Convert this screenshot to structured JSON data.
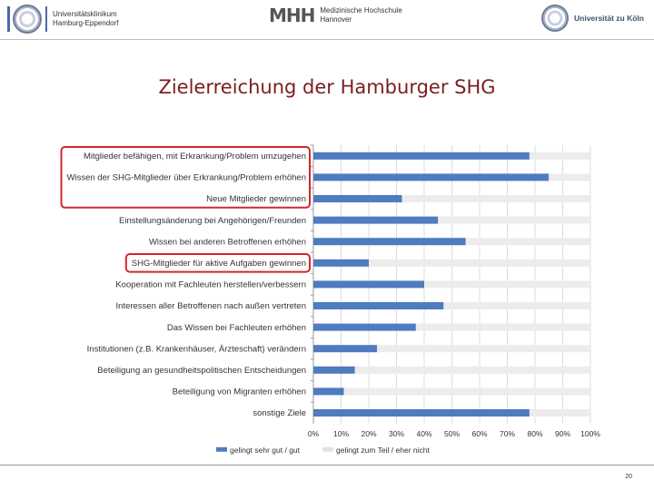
{
  "logos": {
    "uke": {
      "line1": "Universitätsklinikum",
      "line2": "Hamburg-Eppendorf"
    },
    "mhh": {
      "mark": "MHH",
      "line1": "Medizinische Hochschule",
      "line2": "Hannover"
    },
    "uzk": {
      "name": "Universität zu Köln"
    }
  },
  "slide": {
    "title": "Zielerreichung der Hamburger SHG",
    "page_number": "20"
  },
  "colors": {
    "blue": "#4f7bbf",
    "grey": "#ececec",
    "highlight": "#d0282c",
    "title": "#7a1e1e"
  },
  "chart_data": {
    "type": "bar",
    "orientation": "horizontal",
    "stacked_percent": true,
    "categories": [
      "Mitglieder befähigen, mit Erkrankung/Problem umzugehen",
      "Wissen der SHG-Mitglieder über Erkrankung/Problem erhöhen",
      "Neue Mitglieder gewinnen",
      "Einstellungsänderung bei Angehörigen/Freunden",
      "Wissen bei anderen Betroffenen erhöhen",
      "SHG-Mitglieder für aktive Aufgaben gewinnen",
      "Kooperation mit Fachleuten herstellen/verbessern",
      "Interessen aller Betroffenen nach außen vertreten",
      "Das Wissen bei Fachleuten erhöhen",
      "Institutionen (z.B. Krankenhäuser, Ärzteschaft) verändern",
      "Beteiligung an gesundheitspolitischen Entscheidungen",
      "Beteiligung von Migranten erhöhen",
      "sonstige Ziele"
    ],
    "series": [
      {
        "name": "gelingt sehr gut / gut",
        "values": [
          78,
          85,
          32,
          45,
          55,
          20,
          40,
          47,
          37,
          23,
          15,
          11,
          78
        ]
      },
      {
        "name": "gelingt zum Teil / eher nicht",
        "values": [
          22,
          15,
          68,
          55,
          45,
          80,
          60,
          53,
          63,
          77,
          85,
          89,
          22
        ]
      }
    ],
    "highlighted": [
      0,
      1,
      2,
      5
    ],
    "x_ticks": [
      "0%",
      "10%",
      "20%",
      "30%",
      "40%",
      "50%",
      "60%",
      "70%",
      "80%",
      "90%",
      "100%"
    ],
    "xlim": [
      0,
      100
    ],
    "legend_position": "bottom"
  }
}
